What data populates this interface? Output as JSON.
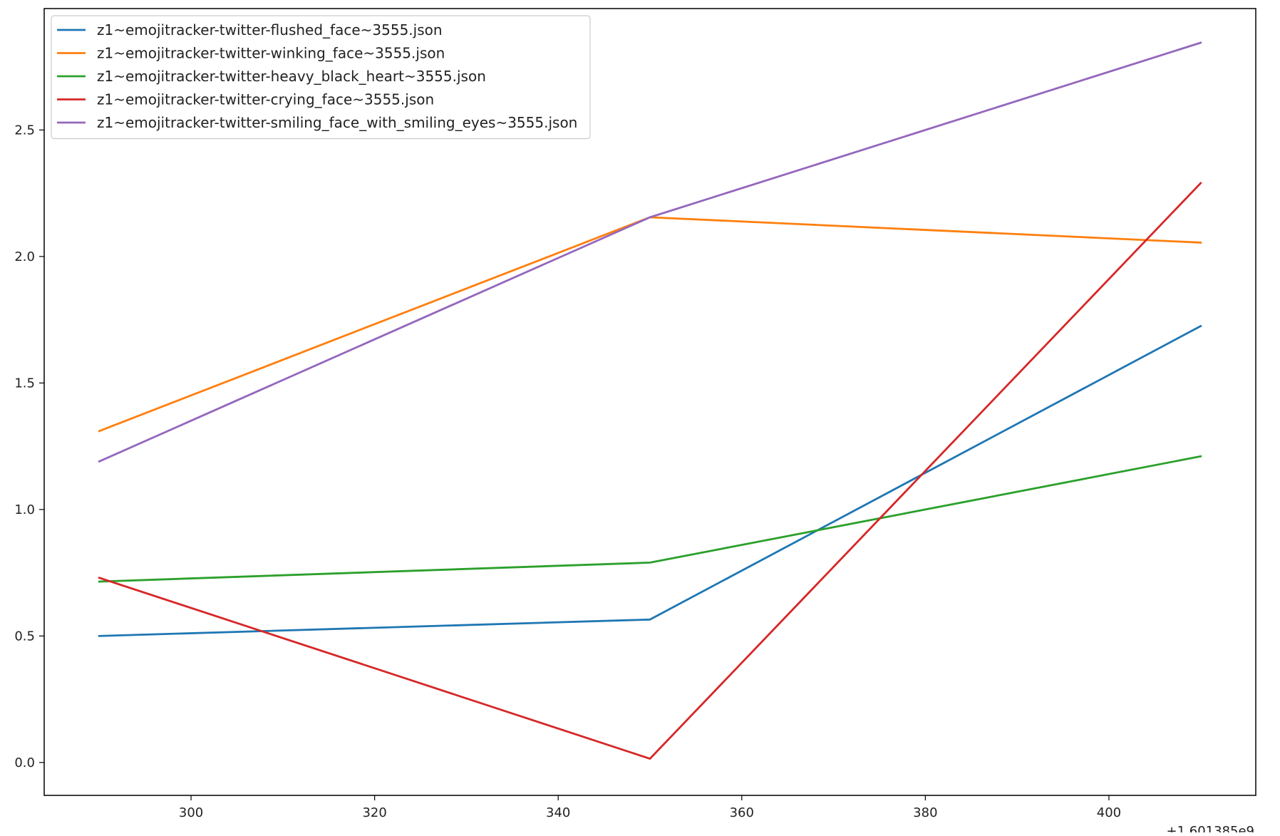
{
  "chart_data": {
    "type": "line",
    "title": "",
    "xlabel": "",
    "ylabel": "",
    "x_offset_label": "+1.601385e9",
    "xlim": [
      284,
      416
    ],
    "ylim": [
      -0.13,
      2.98
    ],
    "x_ticks": [
      300,
      320,
      340,
      360,
      380,
      400
    ],
    "x_tick_labels": [
      "300",
      "320",
      "340",
      "360",
      "380",
      "400"
    ],
    "y_ticks": [
      0.0,
      0.5,
      1.0,
      1.5,
      2.0,
      2.5
    ],
    "y_tick_labels": [
      "0.0",
      "0.5",
      "1.0",
      "1.5",
      "2.0",
      "2.5"
    ],
    "grid": false,
    "legend_position": "top-left",
    "x": [
      290,
      350,
      410
    ],
    "series": [
      {
        "name": "z1~emojitracker-twitter-flushed_face~3555.json",
        "color": "#1f77b4",
        "values": [
          0.5,
          0.565,
          1.725
        ]
      },
      {
        "name": "z1~emojitracker-twitter-winking_face~3555.json",
        "color": "#ff7f0e",
        "values": [
          1.31,
          2.155,
          2.055
        ]
      },
      {
        "name": "z1~emojitracker-twitter-heavy_black_heart~3555.json",
        "color": "#2ca02c",
        "values": [
          0.715,
          0.79,
          1.21
        ]
      },
      {
        "name": "z1~emojitracker-twitter-crying_face~3555.json",
        "color": "#d62728",
        "values": [
          0.73,
          0.015,
          2.29
        ]
      },
      {
        "name": "z1~emojitracker-twitter-smiling_face_with_smiling_eyes~3555.json",
        "color": "#9467bd",
        "values": [
          1.19,
          2.155,
          2.845
        ]
      }
    ]
  }
}
